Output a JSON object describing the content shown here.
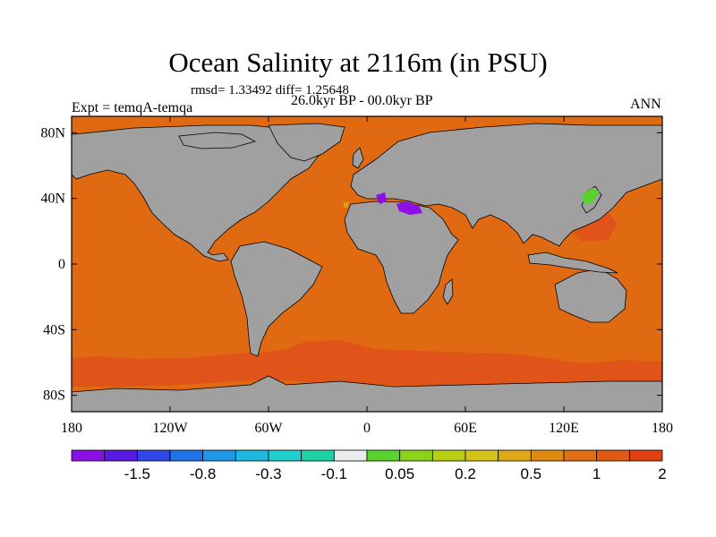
{
  "title": "Ocean Salinity at 2116m (in PSU)",
  "stats": {
    "rmsd_label": "rmsd= 1.33492 diff= 1.25648"
  },
  "period": "26.0kyr BP - 00.0kyr BP",
  "experiment": "Expt = temqA-temqa",
  "season": "ANN",
  "colors": {
    "ocean_dominant": "#e06a12",
    "ocean_strong": "#e0541a",
    "land": "#a0a0a0",
    "outline": "#000000"
  },
  "chart_data": {
    "type": "heatmap",
    "title": "Ocean Salinity at 2116m (in PSU)",
    "subtitle": "26.0kyr BP - 00.0kyr BP",
    "variable": "salinity difference",
    "units": "PSU",
    "depth": "2116m",
    "rmsd": 1.33492,
    "diff": 1.25648,
    "x_axis": {
      "range": [
        -180,
        180
      ],
      "ticks": [
        -180,
        -120,
        -60,
        0,
        60,
        120,
        180
      ],
      "tick_labels": [
        "180",
        "120W",
        "60W",
        "0",
        "60E",
        "120E",
        "180"
      ]
    },
    "y_axis": {
      "range": [
        -90,
        90
      ],
      "ticks": [
        80,
        40,
        0,
        -40,
        -80
      ],
      "tick_labels": [
        "80N",
        "40N",
        "0",
        "40S",
        "80S"
      ]
    },
    "colorbar": {
      "colors": [
        "#8c10e6",
        "#5a19e0",
        "#2e47e6",
        "#1f73e6",
        "#1f96e6",
        "#1fb8e0",
        "#1fcfcf",
        "#1fd2a5",
        "#ececec",
        "#5ad22c",
        "#8cd21c",
        "#b9cf16",
        "#d6c31a",
        "#e0a818",
        "#e08a12",
        "#e06e12",
        "#e05a16",
        "#de4012"
      ],
      "labels": [
        "-1.5",
        "-0.8",
        "-0.3",
        "-0.1",
        "0.05",
        "0.2",
        "0.5",
        "1",
        "2"
      ]
    }
  }
}
